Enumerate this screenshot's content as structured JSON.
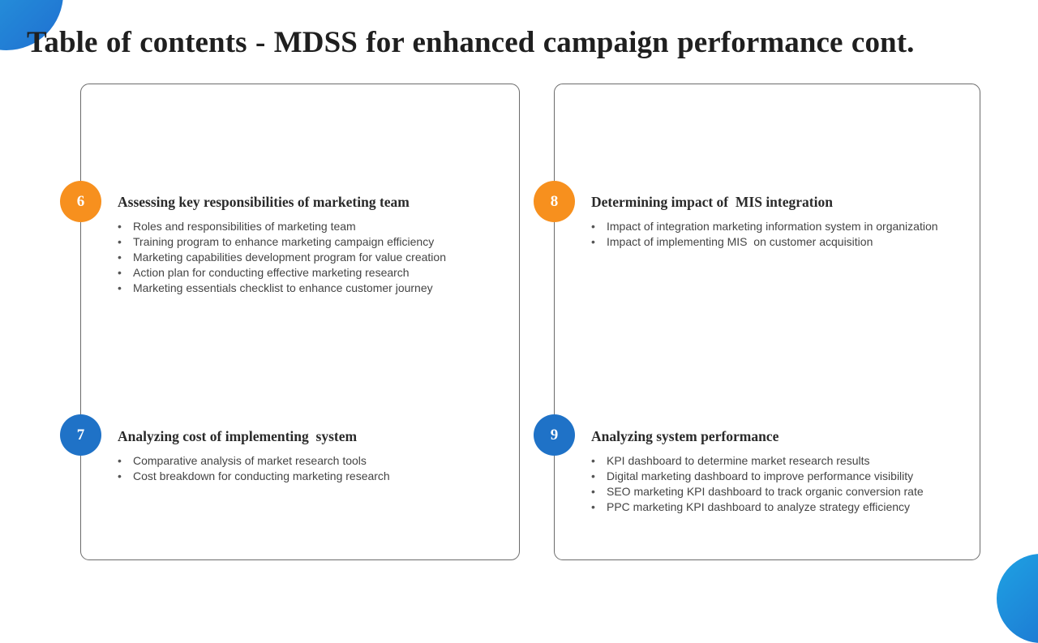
{
  "title": "Table of contents - MDSS for enhanced campaign performance cont.",
  "colors": {
    "accent_orange": "#f7901e",
    "accent_blue": "#1f72c7",
    "panel_border": "#6b6b6b",
    "title_text": "#1f1f1f"
  },
  "sections": [
    {
      "number": "6",
      "heading": "Assessing key responsibilities of marketing team",
      "items": [
        "Roles and responsibilities of marketing team",
        "Training program to enhance marketing campaign efficiency",
        "Marketing capabilities development program for value creation",
        "Action plan for conducting effective marketing research",
        "Marketing essentials checklist to enhance customer journey"
      ]
    },
    {
      "number": "7",
      "heading": "Analyzing cost of implementing  system",
      "items": [
        "Comparative analysis of market research tools",
        "Cost breakdown for conducting marketing research"
      ]
    },
    {
      "number": "8",
      "heading": "Determining impact of  MIS integration",
      "items": [
        "Impact of integration marketing information system in organization",
        "Impact of implementing MIS  on customer acquisition"
      ]
    },
    {
      "number": "9",
      "heading": "Analyzing system performance",
      "items": [
        "KPI dashboard to determine market research results",
        "Digital marketing dashboard to improve performance visibility",
        "SEO marketing KPI dashboard to track organic conversion rate",
        "PPC marketing KPI dashboard to analyze strategy efficiency"
      ]
    }
  ]
}
